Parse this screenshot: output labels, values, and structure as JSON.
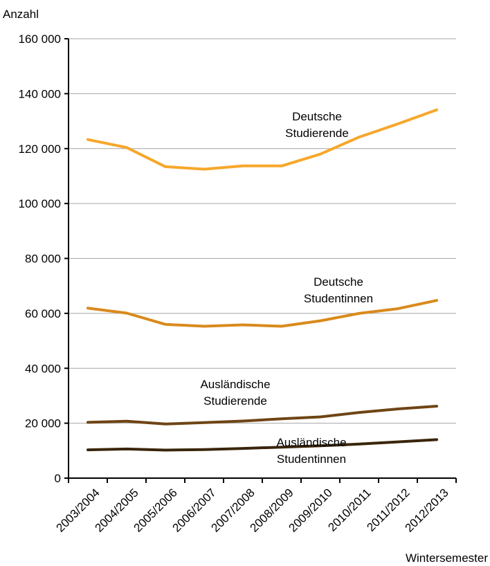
{
  "chart_data": {
    "type": "line",
    "ylabel": "Anzahl",
    "xlabel": "Wintersemester",
    "ylim": [
      0,
      160000
    ],
    "yticks": [
      0,
      20000,
      40000,
      60000,
      80000,
      100000,
      120000,
      140000,
      160000
    ],
    "ytick_labels": [
      "0",
      "20 000",
      "40 000",
      "60 000",
      "80 000",
      "100 000",
      "120 000",
      "140 000",
      "160 000"
    ],
    "categories": [
      "2003/2004",
      "2004/2005",
      "2005/2006",
      "2006/2007",
      "2007/2008",
      "2008/2009",
      "2009/2010",
      "2010/2011",
      "2011/2012",
      "2012/2013"
    ],
    "grid": true,
    "legend": "none",
    "series": [
      {
        "name": "Deutsche Studierende",
        "label_lines": [
          "Deutsche",
          "Studierende"
        ],
        "color": "#f7a72b",
        "values": [
          123300,
          120400,
          113400,
          112500,
          113700,
          113700,
          118000,
          124200,
          129000,
          134100
        ]
      },
      {
        "name": "Deutsche Studentinnen",
        "label_lines": [
          "Deutsche",
          "Studentinnen"
        ],
        "color": "#d98a1c",
        "values": [
          61900,
          60100,
          56000,
          55300,
          55800,
          55300,
          57300,
          60000,
          61700,
          64700
        ]
      },
      {
        "name": "Ausländische Studierende",
        "label_lines": [
          "Ausländische",
          "Studierende"
        ],
        "color": "#6e4515",
        "values": [
          20300,
          20700,
          19700,
          20200,
          20800,
          21600,
          22300,
          23900,
          25200,
          26200
        ]
      },
      {
        "name": "Ausländische Studentinnen",
        "label_lines": [
          "Ausländische",
          "Studentinnen"
        ],
        "color": "#3a250c",
        "values": [
          10300,
          10600,
          10200,
          10400,
          10800,
          11300,
          11800,
          12400,
          13200,
          14000
        ]
      }
    ]
  }
}
